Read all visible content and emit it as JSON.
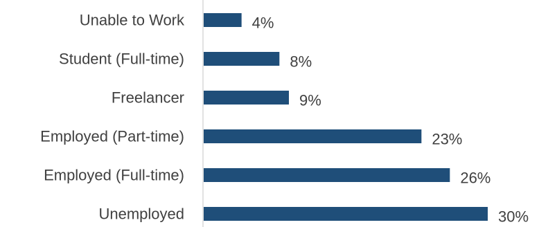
{
  "chart_data": {
    "type": "bar",
    "orientation": "horizontal",
    "categories": [
      "Unable to Work",
      "Student (Full-time)",
      "Freelancer",
      "Employed (Part-time)",
      "Employed (Full-time)",
      "Unemployed"
    ],
    "values": [
      4,
      8,
      9,
      23,
      26,
      30
    ],
    "value_labels": [
      "4%",
      "8%",
      "9%",
      "23%",
      "26%",
      "30%"
    ],
    "unit": "%",
    "title": "",
    "xlabel": "",
    "ylabel": "",
    "xlim": [
      0,
      30
    ],
    "grid": false,
    "legend": "none",
    "bar_color": "#1f4e79",
    "axis_color": "#d9d9d9",
    "text_color": "#404040"
  }
}
